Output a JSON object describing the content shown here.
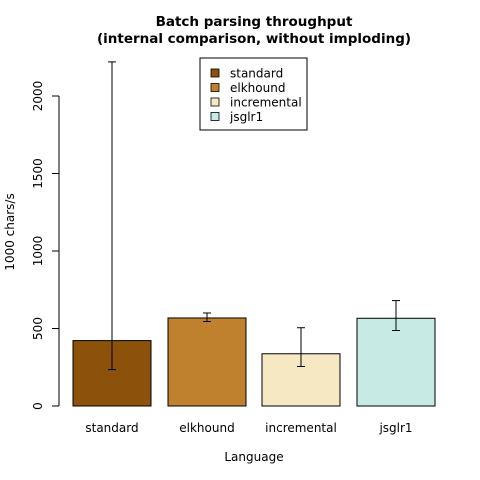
{
  "chart_data": {
    "type": "bar",
    "title": "Batch parsing throughput",
    "subtitle": "(internal comparison, without imploding)",
    "xlabel": "Language",
    "ylabel": "1000 chars/s",
    "ylim": [
      0,
      2250
    ],
    "yticks": [
      0,
      500,
      1000,
      1500,
      2000
    ],
    "grid": false,
    "legend_position": "top-center",
    "categories": [
      "standard",
      "elkhound",
      "incremental",
      "jsglr1"
    ],
    "values": [
      422,
      568,
      337,
      566
    ],
    "error_low": [
      235,
      545,
      255,
      487
    ],
    "error_high": [
      2220,
      600,
      505,
      680
    ],
    "colors": [
      "#8c510a",
      "#bf812d",
      "#f6e8c3",
      "#c7eae5"
    ],
    "legend": [
      "standard",
      "elkhound",
      "incremental",
      "jsglr1"
    ]
  }
}
